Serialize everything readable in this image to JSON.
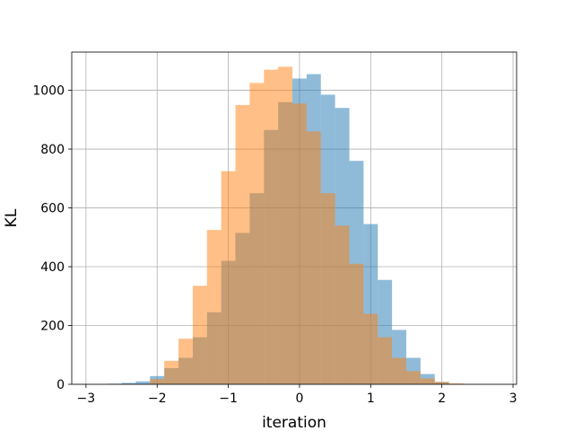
{
  "chart_data": {
    "type": "bar",
    "title": "",
    "xlabel": "iteration",
    "ylabel": "KL",
    "xlim": [
      -3.2,
      3.05
    ],
    "ylim": [
      0,
      1130
    ],
    "xticks": [
      -3,
      -2,
      -1,
      0,
      1,
      2,
      3
    ],
    "yticks": [
      0,
      200,
      400,
      600,
      800,
      1000
    ],
    "grid": true,
    "legend": "none",
    "series": [
      {
        "color": "#1f77b4",
        "opacity": 0.5,
        "bin_edges": [
          -2.7,
          -2.5,
          -2.3,
          -2.1,
          -1.9,
          -1.7,
          -1.5,
          -1.3,
          -1.1,
          -0.9,
          -0.7,
          -0.5,
          -0.3,
          -0.1,
          0.1,
          0.3,
          0.5,
          0.7,
          0.9,
          1.1,
          1.3,
          1.5,
          1.7,
          1.9,
          2.1
        ],
        "values": [
          2,
          5,
          10,
          28,
          55,
          90,
          160,
          245,
          420,
          515,
          650,
          865,
          960,
          1040,
          1055,
          985,
          940,
          760,
          545,
          355,
          185,
          90,
          35,
          8
        ]
      },
      {
        "color": "#ff7f0e",
        "opacity": 0.5,
        "bin_edges": [
          -2.1,
          -1.9,
          -1.7,
          -1.5,
          -1.3,
          -1.1,
          -0.9,
          -0.7,
          -0.5,
          -0.3,
          -0.1,
          0.1,
          0.3,
          0.5,
          0.7,
          0.9,
          1.1,
          1.3,
          1.5,
          1.7,
          1.9,
          2.1,
          2.3,
          2.5
        ],
        "values": [
          18,
          80,
          155,
          335,
          525,
          725,
          950,
          1025,
          1070,
          1080,
          955,
          860,
          650,
          540,
          410,
          240,
          160,
          90,
          45,
          20,
          8,
          3,
          1
        ]
      }
    ]
  }
}
